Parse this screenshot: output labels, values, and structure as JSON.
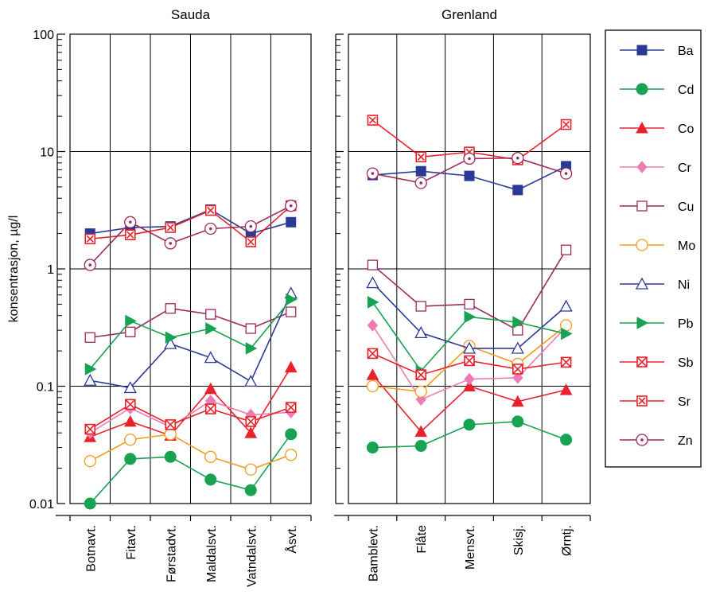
{
  "chart_data": {
    "type": "line",
    "y_scale": "log",
    "ylim": [
      0.01,
      100
    ],
    "ylabel": "konsentrasjon, µg/l",
    "y_ticks": [
      "0.01",
      "0.1",
      "1",
      "10",
      "100"
    ],
    "grid": true,
    "legend_position": "right",
    "panels": [
      {
        "title": "Sauda",
        "categories": [
          "Botnavt.",
          "Fitavt.",
          "Førstadvt.",
          "Maldalsvt.",
          "Vatndalsvt.",
          "Åsvt."
        ],
        "series": [
          {
            "name": "Ba",
            "values": [
              2.0,
              2.25,
              2.3,
              3.2,
              2.0,
              2.5
            ]
          },
          {
            "name": "Cd",
            "values": [
              0.01,
              0.024,
              0.025,
              0.016,
              0.013,
              0.039
            ]
          },
          {
            "name": "Co",
            "values": [
              0.037,
              0.05,
              0.038,
              0.095,
              0.04,
              0.145
            ]
          },
          {
            "name": "Cr",
            "values": [
              0.04,
              0.065,
              0.045,
              0.075,
              0.057,
              0.06
            ]
          },
          {
            "name": "Cu",
            "values": [
              0.26,
              0.29,
              0.46,
              0.41,
              0.31,
              0.43
            ]
          },
          {
            "name": "Mo",
            "values": [
              0.023,
              0.035,
              0.039,
              0.025,
              0.0195,
              0.026
            ]
          },
          {
            "name": "Ni",
            "values": [
              0.112,
              0.097,
              0.23,
              0.175,
              0.11,
              0.62
            ]
          },
          {
            "name": "Pb",
            "values": [
              0.14,
              0.36,
              0.26,
              0.31,
              0.21,
              0.55
            ]
          },
          {
            "name": "Sb",
            "values": [
              0.043,
              0.07,
              0.047,
              0.064,
              0.05,
              0.066
            ]
          },
          {
            "name": "Sr",
            "values": [
              1.8,
              1.95,
              2.25,
              3.15,
              1.7,
              3.45
            ]
          },
          {
            "name": "Zn",
            "values": [
              1.08,
              2.5,
              1.65,
              2.2,
              2.3,
              3.45
            ]
          }
        ]
      },
      {
        "title": "Grenland",
        "categories": [
          "Bamblevt.",
          "Flåte",
          "Mensvt.",
          "Skisj.",
          "Ørntj."
        ],
        "series": [
          {
            "name": "Ba",
            "values": [
              6.3,
              6.8,
              6.2,
              4.7,
              7.5
            ]
          },
          {
            "name": "Cd",
            "values": [
              0.03,
              0.031,
              0.047,
              0.05,
              0.035
            ]
          },
          {
            "name": "Co",
            "values": [
              0.125,
              0.041,
              0.1,
              0.074,
              0.093
            ]
          },
          {
            "name": "Cr",
            "values": [
              0.33,
              0.077,
              0.115,
              0.118,
              0.32
            ]
          },
          {
            "name": "Cu",
            "values": [
              1.08,
              0.48,
              0.5,
              0.3,
              1.45
            ]
          },
          {
            "name": "Mo",
            "values": [
              0.1,
              0.09,
              0.22,
              0.155,
              0.33
            ]
          },
          {
            "name": "Ni",
            "values": [
              0.76,
              0.285,
              0.21,
              0.21,
              0.48
            ]
          },
          {
            "name": "Pb",
            "values": [
              0.52,
              0.135,
              0.39,
              0.35,
              0.28
            ]
          },
          {
            "name": "Sb",
            "values": [
              0.19,
              0.125,
              0.165,
              0.14,
              0.16
            ]
          },
          {
            "name": "Sr",
            "values": [
              18.5,
              9.0,
              9.9,
              8.5,
              17.0
            ]
          },
          {
            "name": "Zn",
            "values": [
              6.5,
              5.4,
              8.7,
              8.8,
              6.5
            ]
          }
        ]
      }
    ],
    "legend": [
      "Ba",
      "Cd",
      "Co",
      "Cr",
      "Cu",
      "Mo",
      "Ni",
      "Pb",
      "Sb",
      "Sr",
      "Zn"
    ],
    "series_style": {
      "Ba": {
        "color": "#2b3a96",
        "marker": "square-filled"
      },
      "Cd": {
        "color": "#17a352",
        "marker": "circle-filled"
      },
      "Co": {
        "color": "#e8222c",
        "marker": "triangle-up-filled"
      },
      "Cr": {
        "color": "#ef7bb4",
        "marker": "diamond-filled"
      },
      "Cu": {
        "color": "#9e2a5e",
        "marker": "square-open"
      },
      "Mo": {
        "color": "#f39c1e",
        "marker": "circle-open"
      },
      "Ni": {
        "color": "#2b3a96",
        "marker": "triangle-up-open"
      },
      "Pb": {
        "color": "#17a352",
        "marker": "triangle-right-filled"
      },
      "Sb": {
        "color": "#e8222c",
        "marker": "square-x"
      },
      "Sr": {
        "color": "#e8222c",
        "marker": "square-x-diagonal"
      },
      "Zn": {
        "color": "#9e2a5e",
        "marker": "circle-dot"
      }
    }
  }
}
